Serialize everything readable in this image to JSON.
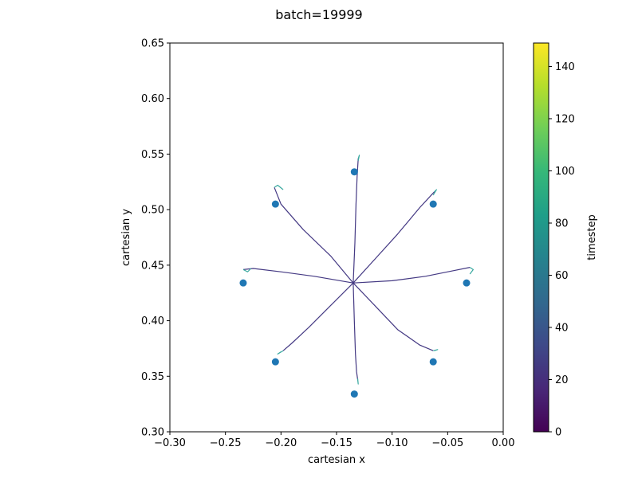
{
  "figure": {
    "title": "batch=19999"
  },
  "chart_data": {
    "type": "line",
    "title": "batch=19999",
    "xlabel": "cartesian x",
    "ylabel": "cartesian y",
    "xlim": [
      -0.3,
      0.0
    ],
    "ylim": [
      0.3,
      0.65
    ],
    "xticks": [
      "-0.30",
      "-0.25",
      "-0.20",
      "-0.15",
      "-0.10",
      "-0.05",
      "0.00"
    ],
    "yticks": [
      "0.30",
      "0.35",
      "0.40",
      "0.45",
      "0.50",
      "0.55",
      "0.60",
      "0.65"
    ],
    "grid": false,
    "center": [
      -0.135,
      0.434
    ],
    "targets": {
      "color": "#1f77b4",
      "x": [
        -0.134,
        -0.063,
        -0.033,
        -0.063,
        -0.134,
        -0.205,
        -0.234,
        -0.205
      ],
      "y": [
        0.534,
        0.505,
        0.434,
        0.363,
        0.334,
        0.363,
        0.434,
        0.505
      ]
    },
    "trajectories": [
      {
        "x": [
          -0.135,
          -0.1335,
          -0.1325,
          -0.1315,
          -0.1305,
          -0.1295,
          -0.1305
        ],
        "y": [
          0.434,
          0.47,
          0.505,
          0.53,
          0.546,
          0.549,
          0.544
        ]
      },
      {
        "x": [
          -0.135,
          -0.115,
          -0.095,
          -0.075,
          -0.062,
          -0.06,
          -0.063
        ],
        "y": [
          0.434,
          0.456,
          0.478,
          0.502,
          0.516,
          0.518,
          0.513
        ]
      },
      {
        "x": [
          -0.135,
          -0.1,
          -0.07,
          -0.045,
          -0.03,
          -0.027,
          -0.03
        ],
        "y": [
          0.434,
          0.436,
          0.44,
          0.445,
          0.448,
          0.446,
          0.442
        ]
      },
      {
        "x": [
          -0.135,
          -0.115,
          -0.095,
          -0.075,
          -0.063,
          -0.059,
          -0.062
        ],
        "y": [
          0.434,
          0.413,
          0.392,
          0.378,
          0.373,
          0.374,
          0.373
        ]
      },
      {
        "x": [
          -0.135,
          -0.134,
          -0.133,
          -0.132,
          -0.131,
          -0.1305,
          -0.131
        ],
        "y": [
          0.434,
          0.4,
          0.37,
          0.354,
          0.347,
          0.343,
          0.348
        ]
      },
      {
        "x": [
          -0.135,
          -0.155,
          -0.175,
          -0.19,
          -0.198,
          -0.203,
          -0.2
        ],
        "y": [
          0.434,
          0.414,
          0.394,
          0.38,
          0.373,
          0.37,
          0.372
        ]
      },
      {
        "x": [
          -0.135,
          -0.17,
          -0.2,
          -0.225,
          -0.234,
          -0.23,
          -0.227
        ],
        "y": [
          0.434,
          0.44,
          0.444,
          0.447,
          0.446,
          0.444,
          0.447
        ]
      },
      {
        "x": [
          -0.135,
          -0.155,
          -0.18,
          -0.2,
          -0.206,
          -0.203,
          -0.198
        ],
        "y": [
          0.434,
          0.458,
          0.482,
          0.505,
          0.52,
          0.522,
          0.518
        ]
      }
    ],
    "colorbar": {
      "label": "timestep",
      "range": [
        0,
        149
      ],
      "ticks": [
        "0",
        "20",
        "40",
        "60",
        "80",
        "100",
        "120",
        "140"
      ],
      "colormap": "viridis",
      "stops": [
        "#440154",
        "#482878",
        "#3e4989",
        "#31688e",
        "#26828e",
        "#1f9e89",
        "#35b779",
        "#6ece58",
        "#b5de2b",
        "#fde725"
      ]
    }
  }
}
